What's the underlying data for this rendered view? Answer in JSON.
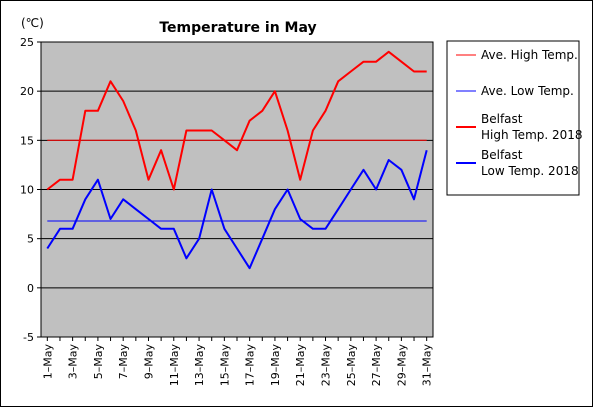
{
  "chart_data": {
    "type": "line",
    "title": "Temperature in May",
    "unit_label": "(℃)",
    "ylim": [
      -5,
      25
    ],
    "y_ticks": [
      25,
      20,
      15,
      10,
      5,
      0,
      -5
    ],
    "grid": "horizontal",
    "plot_background": "#c0c0c0",
    "x": [
      "1–May",
      "2–May",
      "3–May",
      "4–May",
      "5–May",
      "6–May",
      "7–May",
      "8–May",
      "9–May",
      "10–May",
      "11–May",
      "12–May",
      "13–May",
      "14–May",
      "15–May",
      "16–May",
      "17–May",
      "18–May",
      "19–May",
      "20–May",
      "21–May",
      "22–May",
      "23–May",
      "24–May",
      "25–May",
      "26–May",
      "27–May",
      "28–May",
      "29–May",
      "30–May",
      "31–May"
    ],
    "x_tick_labels": [
      "1–May",
      "3–May",
      "5–May",
      "7–May",
      "9–May",
      "11–May",
      "13–May",
      "15–May",
      "17–May",
      "19–May",
      "21–May",
      "23–May",
      "25–May",
      "27–May",
      "29–May",
      "31–May"
    ],
    "legend_position": "right",
    "series": [
      {
        "name": "Ave. High Temp.",
        "style": "thin",
        "color": "#ff0000",
        "values": [
          15,
          15,
          15,
          15,
          15,
          15,
          15,
          15,
          15,
          15,
          15,
          15,
          15,
          15,
          15,
          15,
          15,
          15,
          15,
          15,
          15,
          15,
          15,
          15,
          15,
          15,
          15,
          15,
          15,
          15,
          15
        ]
      },
      {
        "name": "Ave. Low Temp.",
        "style": "thin",
        "color": "#0000ff",
        "values": [
          6.8,
          6.8,
          6.8,
          6.8,
          6.8,
          6.8,
          6.8,
          6.8,
          6.8,
          6.8,
          6.8,
          6.8,
          6.8,
          6.8,
          6.8,
          6.8,
          6.8,
          6.8,
          6.8,
          6.8,
          6.8,
          6.8,
          6.8,
          6.8,
          6.8,
          6.8,
          6.8,
          6.8,
          6.8,
          6.8,
          6.8
        ]
      },
      {
        "name": "Belfast High Temp. 2018",
        "legend_lines": [
          "Belfast",
          "High Temp. 2018"
        ],
        "style": "thick",
        "color": "#ff0000",
        "values": [
          10,
          11,
          11,
          18,
          18,
          21,
          19,
          16,
          11,
          14,
          10,
          16,
          16,
          16,
          15,
          14,
          17,
          18,
          20,
          16,
          11,
          16,
          18,
          21,
          22,
          23,
          23,
          24,
          23,
          22,
          22
        ]
      },
      {
        "name": "Belfast Low Temp. 2018",
        "legend_lines": [
          "Belfast",
          "Low Temp. 2018"
        ],
        "style": "thick",
        "color": "#0000ff",
        "values": [
          4,
          6,
          6,
          9,
          11,
          7,
          9,
          8,
          7,
          6,
          6,
          3,
          5,
          10,
          6,
          4,
          2,
          5,
          8,
          10,
          7,
          6,
          6,
          8,
          10,
          12,
          10,
          13,
          12,
          9,
          14
        ]
      }
    ]
  }
}
